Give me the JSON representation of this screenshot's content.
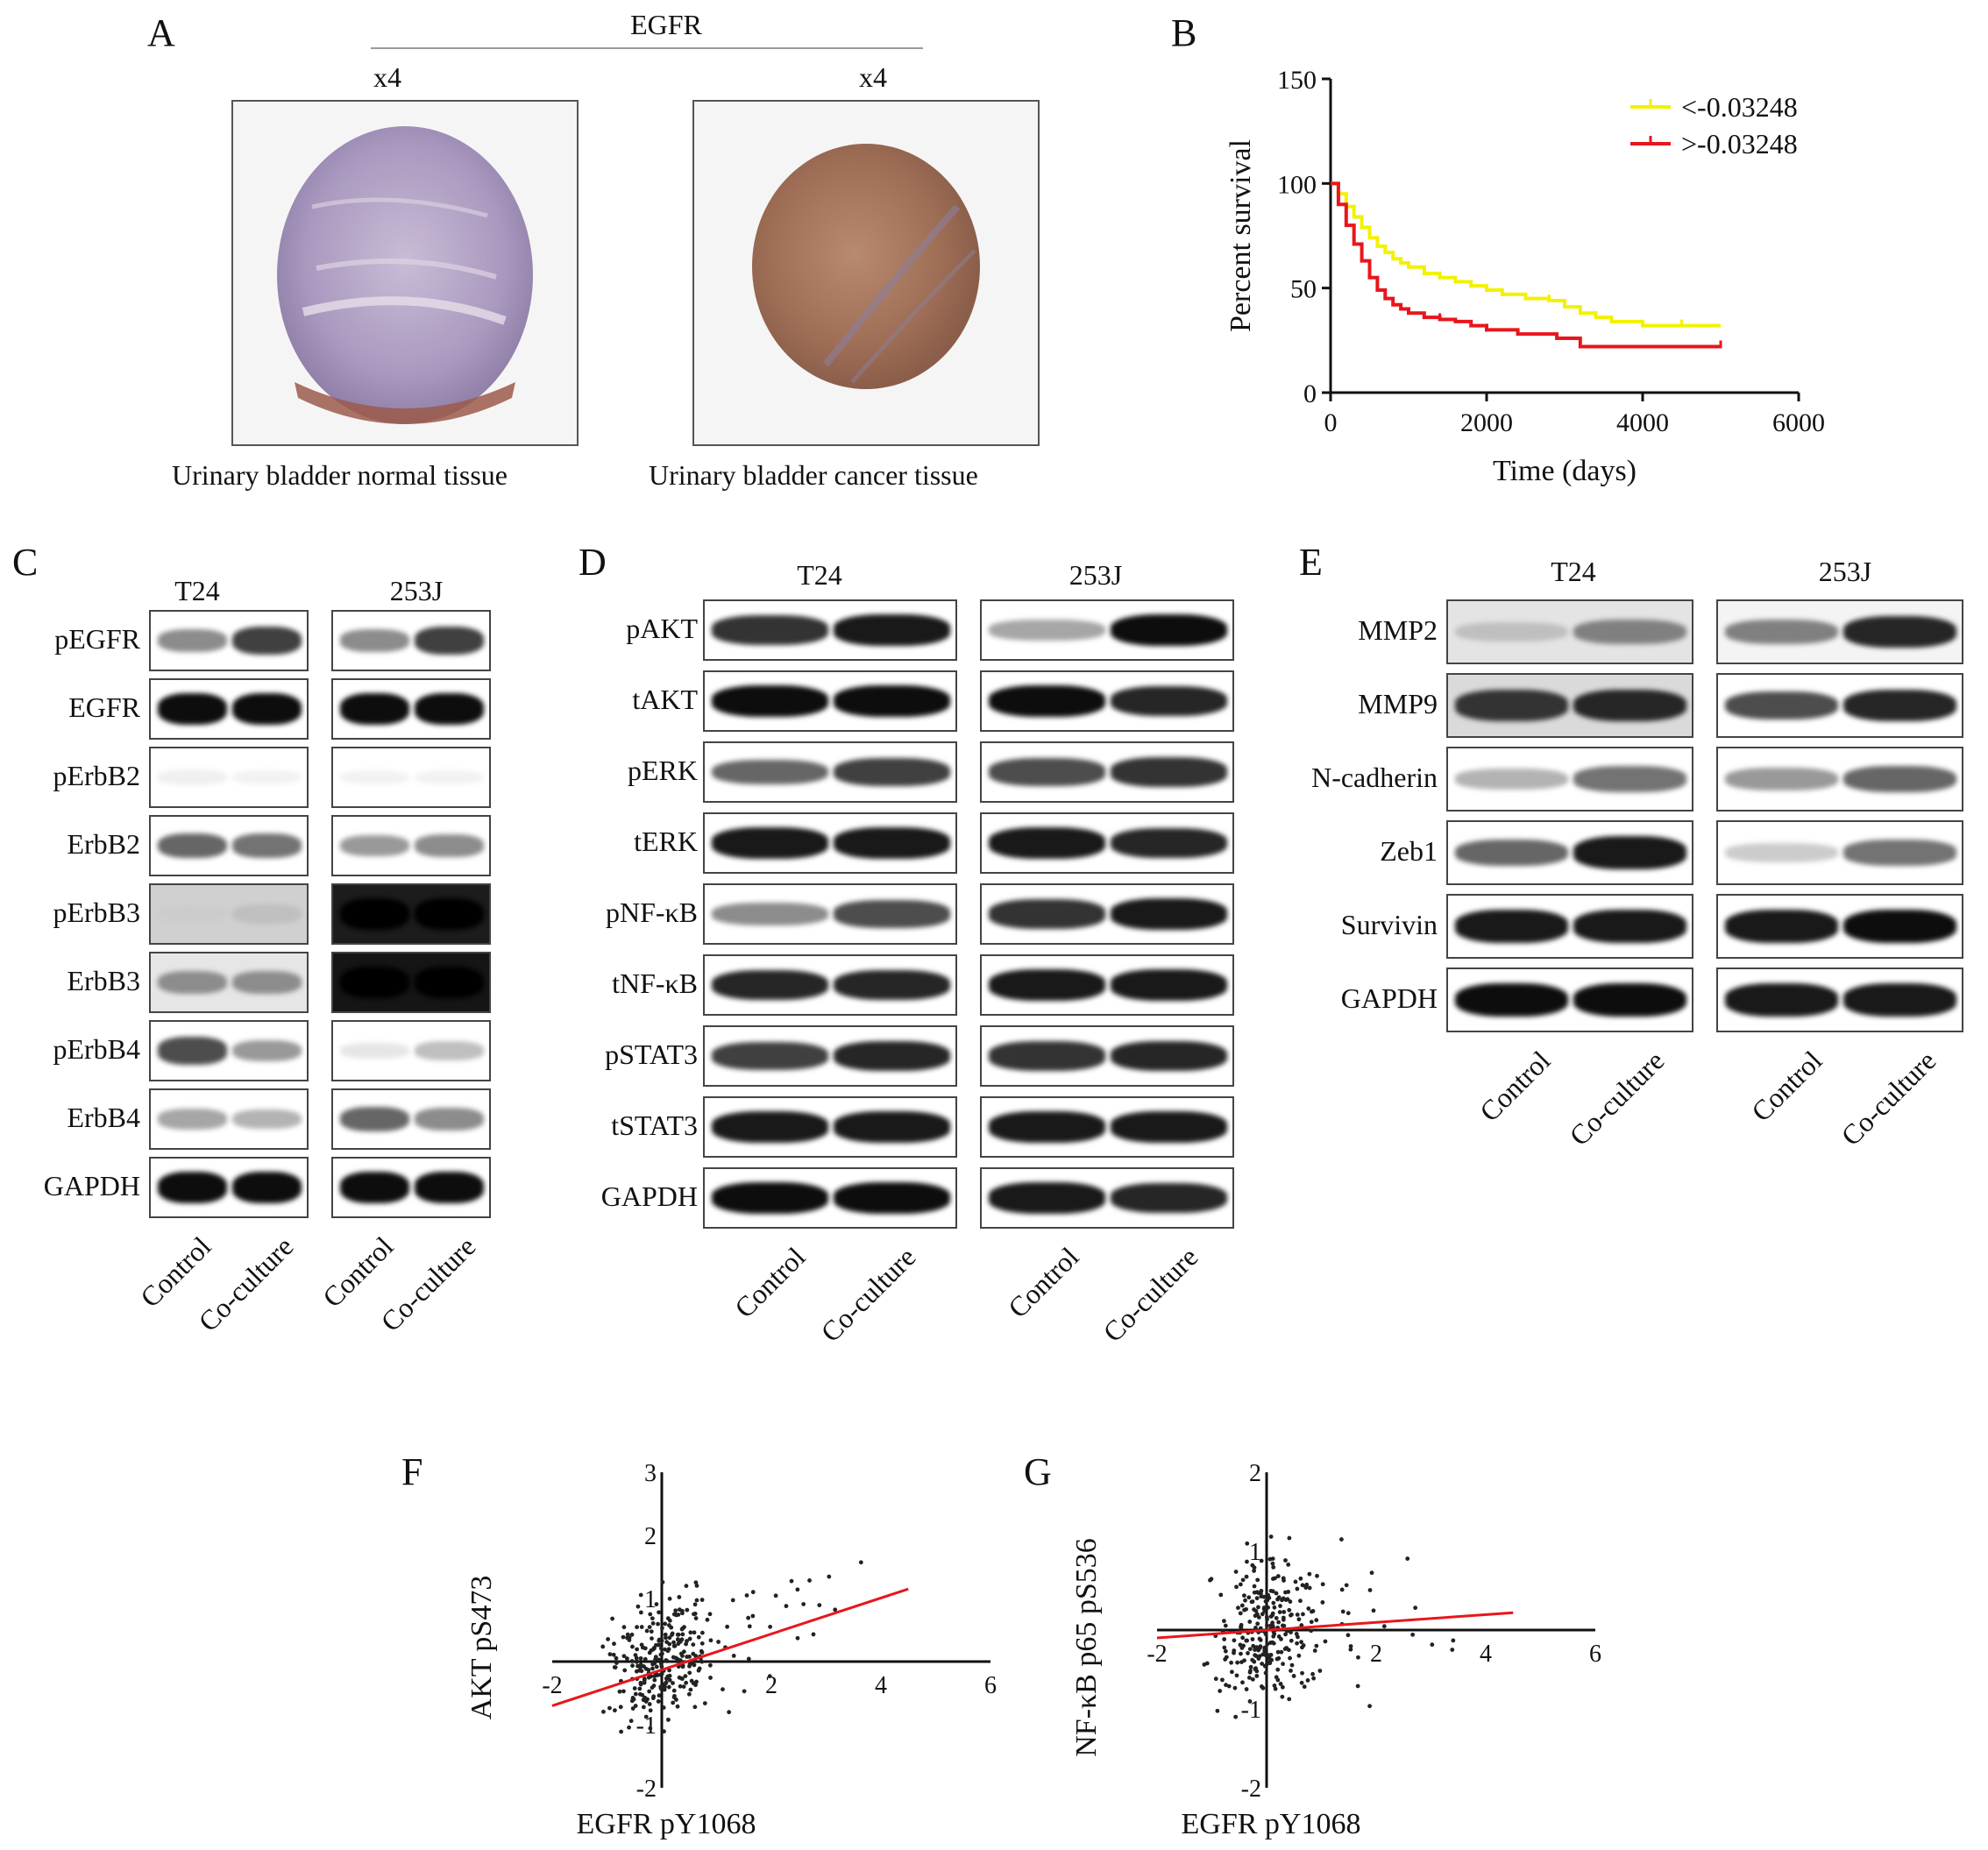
{
  "panels": {
    "A": {
      "letter": "A",
      "title": "EGFR",
      "mag_left": "x4",
      "mag_right": "x4",
      "caption_left": "Urinary bladder  normal  tissue",
      "caption_right": "Urinary bladder cancer tissue"
    },
    "B": {
      "letter": "B"
    },
    "C": {
      "letter": "C",
      "groups": [
        "T24",
        "253J"
      ],
      "rows": [
        "pEGFR",
        "EGFR",
        "pErbB2",
        "ErbB2",
        "pErbB3",
        "ErbB3",
        "pErbB4",
        "ErbB4",
        "GAPDH"
      ],
      "conditions": [
        "Control",
        "Co-culture",
        "Control",
        "Co-culture"
      ]
    },
    "D": {
      "letter": "D",
      "groups": [
        "T24",
        "253J"
      ],
      "rows": [
        "pAKT",
        "tAKT",
        "pERK",
        "tERK",
        "pNF-κB",
        "tNF-κB",
        "pSTAT3",
        "tSTAT3",
        "GAPDH"
      ],
      "conditions": [
        "Control",
        "Co-culture",
        "Control",
        "Co-culture"
      ]
    },
    "E": {
      "letter": "E",
      "groups": [
        "T24",
        "253J"
      ],
      "rows": [
        "MMP2",
        "MMP9",
        "N-cadherin",
        "Zeb1",
        "Survivin",
        "GAPDH"
      ],
      "conditions": [
        "Control",
        "Co-culture",
        "Control",
        "Co-culture"
      ]
    },
    "F": {
      "letter": "F"
    },
    "G": {
      "letter": "G"
    }
  },
  "chart_data": [
    {
      "panel": "B",
      "type": "line",
      "xlabel": "Time (days)",
      "ylabel": "Percent survival",
      "xlim": [
        0,
        6000
      ],
      "ylim": [
        0,
        150
      ],
      "xticks": [
        0,
        2000,
        4000,
        6000
      ],
      "yticks": [
        0,
        50,
        100,
        150
      ],
      "legend_position": "top-right",
      "series": [
        {
          "name": "<-0.03248",
          "color": "#f2f200",
          "x": [
            0,
            100,
            200,
            300,
            400,
            500,
            600,
            700,
            800,
            900,
            1000,
            1200,
            1400,
            1600,
            1800,
            2000,
            2200,
            2500,
            2800,
            3000,
            3200,
            3400,
            3600,
            4000,
            4500,
            5000
          ],
          "y": [
            100,
            95,
            89,
            84,
            79,
            74,
            70,
            67,
            64,
            62,
            60,
            57,
            55,
            53,
            51,
            49,
            47,
            45,
            44,
            41,
            38,
            36,
            34,
            32,
            32,
            32
          ]
        },
        {
          "name": ">-0.03248",
          "color": "#e8161c",
          "x": [
            0,
            100,
            200,
            300,
            400,
            500,
            600,
            700,
            800,
            900,
            1000,
            1200,
            1400,
            1600,
            1800,
            2000,
            2400,
            2900,
            3200,
            4000,
            4500,
            5000
          ],
          "y": [
            100,
            90,
            80,
            71,
            63,
            55,
            49,
            45,
            42,
            40,
            38,
            36,
            35,
            34,
            32,
            30,
            28,
            26,
            22,
            22,
            22,
            22
          ]
        }
      ]
    },
    {
      "panel": "F",
      "type": "scatter",
      "xlabel": "EGFR pY1068",
      "ylabel": "AKT pS473",
      "xlim": [
        -2,
        6
      ],
      "ylim": [
        -2,
        3
      ],
      "xticks": [
        -2,
        2,
        4,
        6
      ],
      "yticks": [
        -2,
        -1,
        1,
        2,
        3
      ],
      "fit_line": {
        "x": [
          -2,
          4.5
        ],
        "y": [
          -0.7,
          1.15
        ]
      },
      "fit_color": "#e8161c"
    },
    {
      "panel": "G",
      "type": "scatter",
      "xlabel": "EGFR pY1068",
      "ylabel": "NF-κB p65 pS536",
      "xlim": [
        -2,
        6
      ],
      "ylim": [
        -2,
        2
      ],
      "xticks": [
        -2,
        2,
        4,
        6
      ],
      "yticks": [
        -2,
        -1,
        1,
        2
      ],
      "fit_line": {
        "x": [
          -2,
          4.5
        ],
        "y": [
          -0.1,
          0.22
        ]
      },
      "fit_color": "#e8161c"
    }
  ]
}
